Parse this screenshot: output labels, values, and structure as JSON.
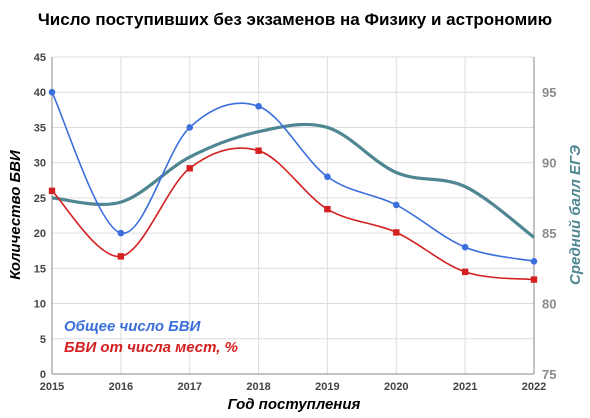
{
  "chart_data": {
    "type": "line",
    "title": "Число поступивших без экзаменов на Физику и астрономию",
    "xlabel": "Год поступления",
    "ylabel": "Количество БВИ",
    "ylabel_right": "Средний балл ЕГЭ",
    "x": [
      "2015",
      "2016",
      "2017",
      "2018",
      "2019",
      "2020",
      "2021",
      "2022"
    ],
    "ylim": [
      0,
      45
    ],
    "yticks": [
      "0",
      "5",
      "10",
      "15",
      "20",
      "25",
      "30",
      "35",
      "40",
      "45"
    ],
    "ylim_right": [
      75,
      97.5
    ],
    "yticks_right": [
      "75",
      "80",
      "85",
      "90",
      "95"
    ],
    "grid": true,
    "legend_position": "bottom-left",
    "series": [
      {
        "name": "Общее число БВИ",
        "axis": "left",
        "marker": "circle",
        "color": "#3a6fdc",
        "values": [
          40,
          20,
          35,
          38,
          28,
          24,
          18,
          16
        ]
      },
      {
        "name": "БВИ от числа мест, %",
        "axis": "left",
        "marker": "square",
        "color": "#d42020",
        "values": [
          26,
          16.7,
          29.2,
          31.7,
          23.4,
          20.1,
          14.5,
          13.4
        ]
      },
      {
        "name": "",
        "axis": "right",
        "marker": "none",
        "color": "#4f8691",
        "values": [
          87.5,
          87.2,
          90.4,
          92.2,
          92.5,
          89.3,
          88.3,
          84.7
        ]
      }
    ]
  }
}
